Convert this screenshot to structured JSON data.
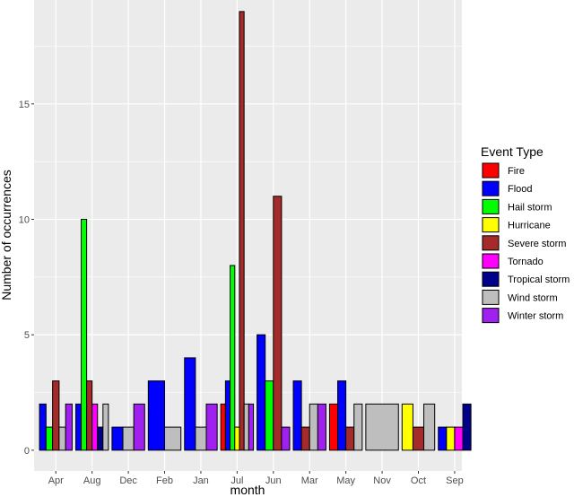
{
  "chart_data": {
    "type": "bar",
    "xlabel": "month",
    "ylabel": "Number of occurrences",
    "legend_title": "Event Type",
    "legend_position": "right",
    "grid": true,
    "ylim": [
      -0.9,
      19.5
    ],
    "yticks": [
      0,
      5,
      10,
      15
    ],
    "categories": [
      "Apr",
      "Aug",
      "Dec",
      "Feb",
      "Jan",
      "Jul",
      "Jun",
      "Mar",
      "May",
      "Nov",
      "Oct",
      "Sep"
    ],
    "series_order": [
      "Fire",
      "Flood",
      "Hail storm",
      "Hurricane",
      "Severe storm",
      "Tornado",
      "Tropical storm",
      "Wind storm",
      "Winter storm"
    ],
    "colors": {
      "Fire": "#ff0000",
      "Flood": "#0000ff",
      "Hail storm": "#00ff00",
      "Hurricane": "#ffff00",
      "Severe storm": "#a52a2a",
      "Tornado": "#ff00ff",
      "Tropical storm": "#00008b",
      "Wind storm": "#bebebe",
      "Winter storm": "#a020f0"
    },
    "data": [
      {
        "month": "Apr",
        "bars": [
          {
            "type": "Flood",
            "value": 2
          },
          {
            "type": "Hail storm",
            "value": 1
          },
          {
            "type": "Severe storm",
            "value": 3
          },
          {
            "type": "Wind storm",
            "value": 1
          },
          {
            "type": "Winter storm",
            "value": 2
          }
        ]
      },
      {
        "month": "Aug",
        "bars": [
          {
            "type": "Flood",
            "value": 2
          },
          {
            "type": "Hail storm",
            "value": 10
          },
          {
            "type": "Severe storm",
            "value": 3
          },
          {
            "type": "Tornado",
            "value": 2
          },
          {
            "type": "Tropical storm",
            "value": 1
          },
          {
            "type": "Wind storm",
            "value": 2
          }
        ]
      },
      {
        "month": "Dec",
        "bars": [
          {
            "type": "Flood",
            "value": 1
          },
          {
            "type": "Wind storm",
            "value": 1
          },
          {
            "type": "Winter storm",
            "value": 2
          }
        ]
      },
      {
        "month": "Feb",
        "bars": [
          {
            "type": "Flood",
            "value": 3
          },
          {
            "type": "Wind storm",
            "value": 1
          }
        ]
      },
      {
        "month": "Jan",
        "bars": [
          {
            "type": "Flood",
            "value": 4
          },
          {
            "type": "Wind storm",
            "value": 1
          },
          {
            "type": "Winter storm",
            "value": 2
          }
        ]
      },
      {
        "month": "Jul",
        "bars": [
          {
            "type": "Fire",
            "value": 2
          },
          {
            "type": "Flood",
            "value": 3
          },
          {
            "type": "Hail storm",
            "value": 8
          },
          {
            "type": "Hurricane",
            "value": 1
          },
          {
            "type": "Severe storm",
            "value": 19
          },
          {
            "type": "Wind storm",
            "value": 2
          },
          {
            "type": "Winter storm",
            "value": 2
          }
        ]
      },
      {
        "month": "Jun",
        "bars": [
          {
            "type": "Flood",
            "value": 5
          },
          {
            "type": "Hail storm",
            "value": 3
          },
          {
            "type": "Severe storm",
            "value": 11
          },
          {
            "type": "Winter storm",
            "value": 1
          }
        ]
      },
      {
        "month": "Mar",
        "bars": [
          {
            "type": "Flood",
            "value": 3
          },
          {
            "type": "Severe storm",
            "value": 1
          },
          {
            "type": "Wind storm",
            "value": 2
          },
          {
            "type": "Winter storm",
            "value": 2
          }
        ]
      },
      {
        "month": "May",
        "bars": [
          {
            "type": "Fire",
            "value": 2
          },
          {
            "type": "Flood",
            "value": 3
          },
          {
            "type": "Severe storm",
            "value": 1
          },
          {
            "type": "Wind storm",
            "value": 2
          }
        ]
      },
      {
        "month": "Nov",
        "bars": [
          {
            "type": "Wind storm",
            "value": 2
          }
        ]
      },
      {
        "month": "Oct",
        "bars": [
          {
            "type": "Hurricane",
            "value": 2
          },
          {
            "type": "Severe storm",
            "value": 1
          },
          {
            "type": "Wind storm",
            "value": 2
          }
        ]
      },
      {
        "month": "Sep",
        "bars": [
          {
            "type": "Flood",
            "value": 1
          },
          {
            "type": "Hurricane",
            "value": 1
          },
          {
            "type": "Tornado",
            "value": 1
          },
          {
            "type": "Tropical storm",
            "value": 2
          }
        ]
      }
    ]
  }
}
